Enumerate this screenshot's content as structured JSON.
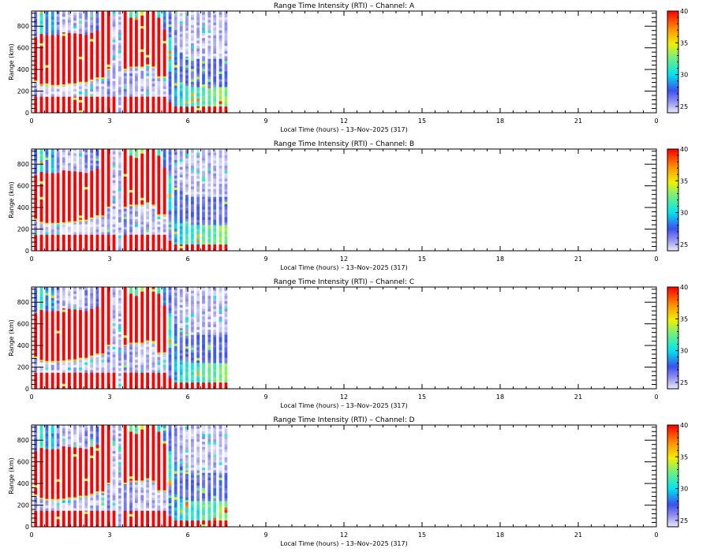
{
  "figure": {
    "type": "Range Time Intensity multi-panel plot"
  },
  "chart_data": [
    {
      "type": "heatmap",
      "title": "Range Time Intensity (RTI) – Channel: A",
      "xlabel": "Local Time (hours) – 13–Nov–2025 (317)",
      "ylabel": "Range (km)",
      "xlim": [
        0,
        24
      ],
      "ylim": [
        0,
        940
      ],
      "x_ticks": [
        0,
        3,
        6,
        9,
        12,
        15,
        18,
        21,
        24
      ],
      "x_tick_labels": [
        "0",
        "3",
        "6",
        "9",
        "12",
        "15",
        "18",
        "21",
        "0"
      ],
      "y_ticks": [
        0,
        200,
        400,
        600,
        800
      ],
      "y_tick_labels": [
        "0",
        "200",
        "400",
        "600",
        "800"
      ],
      "colorbar": {
        "min": 24,
        "max": 40,
        "ticks": [
          25,
          30,
          35,
          40
        ],
        "tick_labels": [
          "25",
          "30",
          "35",
          "40"
        ],
        "colormap": "rainbow-white"
      },
      "data_time_range_hours": [
        0.1,
        7.6
      ],
      "column_interval_hours": 0.215,
      "columns": "see shared_columns.A"
    },
    {
      "type": "heatmap",
      "title": "Range Time Intensity (RTI) – Channel: B",
      "xlabel": "Local Time (hours) – 13–Nov–2025 (317)",
      "ylabel": "Range (km)",
      "xlim": [
        0,
        24
      ],
      "ylim": [
        0,
        940
      ],
      "x_ticks": [
        0,
        3,
        6,
        9,
        12,
        15,
        18,
        21,
        24
      ],
      "x_tick_labels": [
        "0",
        "3",
        "6",
        "9",
        "12",
        "15",
        "18",
        "21",
        "0"
      ],
      "y_ticks": [
        0,
        200,
        400,
        600,
        800
      ],
      "y_tick_labels": [
        "0",
        "200",
        "400",
        "600",
        "800"
      ],
      "colorbar": {
        "min": 24,
        "max": 40,
        "ticks": [
          25,
          30,
          35,
          40
        ],
        "tick_labels": [
          "25",
          "30",
          "35",
          "40"
        ],
        "colormap": "rainbow-white"
      },
      "data_time_range_hours": [
        0.1,
        7.6
      ],
      "column_interval_hours": 0.215,
      "columns": "see shared_columns.B"
    },
    {
      "type": "heatmap",
      "title": "Range Time Intensity (RTI) – Channel: C",
      "xlabel": "Local Time (hours) – 13–Nov–2025 (317)",
      "ylabel": "Range (km)",
      "xlim": [
        0,
        24
      ],
      "ylim": [
        0,
        940
      ],
      "x_ticks": [
        0,
        3,
        6,
        9,
        12,
        15,
        18,
        21,
        24
      ],
      "x_tick_labels": [
        "0",
        "3",
        "6",
        "9",
        "12",
        "15",
        "18",
        "21",
        "0"
      ],
      "y_ticks": [
        0,
        200,
        400,
        600,
        800
      ],
      "y_tick_labels": [
        "0",
        "200",
        "400",
        "600",
        "800"
      ],
      "colorbar": {
        "min": 24,
        "max": 40,
        "ticks": [
          25,
          30,
          35,
          40
        ],
        "tick_labels": [
          "25",
          "30",
          "35",
          "40"
        ],
        "colormap": "rainbow-white"
      },
      "data_time_range_hours": [
        0.1,
        7.6
      ],
      "column_interval_hours": 0.215,
      "columns": "see shared_columns.C"
    },
    {
      "type": "heatmap",
      "title": "Range Time Intensity (RTI) – Channel: D",
      "xlabel": "Local Time (hours) – 13–Nov–2025 (317)",
      "ylabel": "Range (km)",
      "xlim": [
        0,
        24
      ],
      "ylim": [
        0,
        940
      ],
      "x_ticks": [
        0,
        3,
        6,
        9,
        12,
        15,
        18,
        21,
        24
      ],
      "x_tick_labels": [
        "0",
        "3",
        "6",
        "9",
        "12",
        "15",
        "18",
        "21",
        "0"
      ],
      "y_ticks": [
        0,
        200,
        400,
        600,
        800
      ],
      "y_tick_labels": [
        "0",
        "200",
        "400",
        "600",
        "800"
      ],
      "colorbar": {
        "min": 24,
        "max": 40,
        "ticks": [
          25,
          30,
          35,
          40
        ],
        "tick_labels": [
          "25",
          "30",
          "35",
          "40"
        ],
        "colormap": "rainbow-white"
      },
      "data_time_range_hours": [
        0.1,
        7.6
      ],
      "column_interval_hours": 0.215,
      "columns": "see shared_columns.D"
    }
  ],
  "shared_columns_note": "Each column: [time_h, segments] with segments as [range_from_km, range_to_km, intensity]. Intensity in colorbar units (24-40).",
  "shared_columns": {
    "profile": [
      [
        0.1,
        [
          [
            0,
            150,
            40
          ],
          [
            150,
            290,
            26
          ],
          [
            290,
            700,
            40
          ],
          [
            700,
            940,
            27
          ]
        ]
      ],
      [
        0.32,
        [
          [
            0,
            150,
            40
          ],
          [
            150,
            260,
            25
          ],
          [
            260,
            730,
            40
          ],
          [
            730,
            940,
            31
          ]
        ]
      ],
      [
        0.53,
        [
          [
            0,
            150,
            40
          ],
          [
            150,
            250,
            25
          ],
          [
            250,
            720,
            40
          ],
          [
            720,
            940,
            28
          ]
        ]
      ],
      [
        0.75,
        [
          [
            0,
            150,
            40
          ],
          [
            150,
            250,
            25
          ],
          [
            250,
            720,
            40
          ],
          [
            720,
            940,
            29
          ]
        ]
      ],
      [
        0.96,
        [
          [
            0,
            150,
            40
          ],
          [
            150,
            250,
            25
          ],
          [
            250,
            720,
            40
          ],
          [
            720,
            940,
            26
          ]
        ]
      ],
      [
        1.18,
        [
          [
            0,
            150,
            40
          ],
          [
            150,
            255,
            24
          ],
          [
            255,
            745,
            40
          ],
          [
            745,
            940,
            25
          ]
        ]
      ],
      [
        1.39,
        [
          [
            0,
            150,
            40
          ],
          [
            150,
            265,
            24
          ],
          [
            265,
            740,
            40
          ],
          [
            740,
            940,
            25
          ]
        ]
      ],
      [
        1.61,
        [
          [
            0,
            150,
            40
          ],
          [
            150,
            265,
            25
          ],
          [
            265,
            735,
            40
          ],
          [
            735,
            940,
            25
          ]
        ]
      ],
      [
        1.82,
        [
          [
            0,
            150,
            40
          ],
          [
            150,
            280,
            25
          ],
          [
            280,
            730,
            40
          ],
          [
            730,
            940,
            25
          ]
        ]
      ],
      [
        2.04,
        [
          [
            0,
            150,
            40
          ],
          [
            150,
            280,
            25
          ],
          [
            280,
            720,
            40
          ],
          [
            720,
            940,
            26
          ]
        ]
      ],
      [
        2.25,
        [
          [
            0,
            150,
            40
          ],
          [
            150,
            300,
            25
          ],
          [
            300,
            740,
            40
          ],
          [
            740,
            940,
            26
          ]
        ]
      ],
      [
        2.47,
        [
          [
            0,
            150,
            40
          ],
          [
            150,
            320,
            25
          ],
          [
            320,
            760,
            40
          ],
          [
            760,
            940,
            27
          ]
        ]
      ],
      [
        2.68,
        [
          [
            0,
            150,
            40
          ],
          [
            150,
            320,
            25
          ],
          [
            320,
            940,
            40
          ]
        ]
      ],
      [
        2.9,
        [
          [
            0,
            150,
            40
          ],
          [
            150,
            400,
            26
          ],
          [
            400,
            940,
            40
          ]
        ]
      ],
      [
        3.11,
        [
          [
            0,
            150,
            40
          ],
          [
            150,
            940,
            25
          ]
        ]
      ],
      [
        3.33,
        [
          [
            0,
            940,
            25
          ]
        ]
      ],
      [
        3.54,
        [
          [
            0,
            150,
            40
          ],
          [
            150,
            400,
            26
          ],
          [
            400,
            940,
            40
          ]
        ]
      ],
      [
        3.76,
        [
          [
            0,
            150,
            40
          ],
          [
            150,
            420,
            26
          ],
          [
            420,
            880,
            40
          ],
          [
            880,
            940,
            32
          ]
        ]
      ],
      [
        3.97,
        [
          [
            0,
            150,
            40
          ],
          [
            150,
            420,
            25
          ],
          [
            420,
            860,
            40
          ],
          [
            860,
            940,
            32
          ]
        ]
      ],
      [
        4.19,
        [
          [
            0,
            150,
            40
          ],
          [
            150,
            420,
            25
          ],
          [
            420,
            900,
            40
          ],
          [
            900,
            940,
            34
          ]
        ]
      ],
      [
        4.4,
        [
          [
            0,
            150,
            40
          ],
          [
            150,
            440,
            25
          ],
          [
            440,
            940,
            40
          ]
        ]
      ],
      [
        4.62,
        [
          [
            0,
            150,
            40
          ],
          [
            150,
            420,
            25
          ],
          [
            420,
            940,
            40
          ]
        ]
      ],
      [
        4.83,
        [
          [
            0,
            150,
            40
          ],
          [
            150,
            330,
            25
          ],
          [
            330,
            880,
            40
          ],
          [
            880,
            940,
            31
          ]
        ]
      ],
      [
        5.05,
        [
          [
            0,
            150,
            40
          ],
          [
            150,
            330,
            25
          ],
          [
            330,
            770,
            40
          ],
          [
            770,
            940,
            28
          ]
        ]
      ],
      [
        5.26,
        [
          [
            0,
            100,
            40
          ],
          [
            100,
            380,
            27
          ],
          [
            380,
            700,
            31
          ],
          [
            700,
            940,
            27
          ]
        ]
      ],
      [
        5.48,
        [
          [
            0,
            60,
            40
          ],
          [
            60,
            300,
            29
          ],
          [
            300,
            600,
            28
          ],
          [
            600,
            940,
            26
          ]
        ]
      ],
      [
        5.69,
        [
          [
            0,
            60,
            40
          ],
          [
            60,
            260,
            30
          ],
          [
            260,
            560,
            27
          ],
          [
            560,
            940,
            25
          ]
        ]
      ],
      [
        5.91,
        [
          [
            0,
            60,
            40
          ],
          [
            60,
            250,
            31
          ],
          [
            250,
            520,
            27
          ],
          [
            520,
            940,
            25
          ]
        ]
      ],
      [
        6.12,
        [
          [
            0,
            60,
            40
          ],
          [
            60,
            240,
            31
          ],
          [
            240,
            500,
            27
          ],
          [
            500,
            940,
            25
          ]
        ]
      ],
      [
        6.34,
        [
          [
            0,
            60,
            40
          ],
          [
            60,
            240,
            31
          ],
          [
            240,
            500,
            27
          ],
          [
            500,
            940,
            25
          ]
        ]
      ],
      [
        6.55,
        [
          [
            0,
            60,
            40
          ],
          [
            60,
            240,
            32
          ],
          [
            240,
            500,
            27
          ],
          [
            500,
            940,
            25
          ]
        ]
      ],
      [
        6.77,
        [
          [
            0,
            60,
            40
          ],
          [
            60,
            240,
            32
          ],
          [
            240,
            500,
            27
          ],
          [
            500,
            940,
            25
          ]
        ]
      ],
      [
        6.98,
        [
          [
            0,
            60,
            40
          ],
          [
            60,
            240,
            32
          ],
          [
            240,
            500,
            27
          ],
          [
            500,
            940,
            25
          ]
        ]
      ],
      [
        7.2,
        [
          [
            0,
            60,
            40
          ],
          [
            60,
            240,
            33
          ],
          [
            240,
            500,
            27
          ],
          [
            500,
            940,
            25
          ]
        ]
      ],
      [
        7.41,
        [
          [
            0,
            60,
            40
          ],
          [
            60,
            240,
            33
          ],
          [
            240,
            500,
            27
          ],
          [
            500,
            940,
            25
          ]
        ]
      ]
    ]
  }
}
